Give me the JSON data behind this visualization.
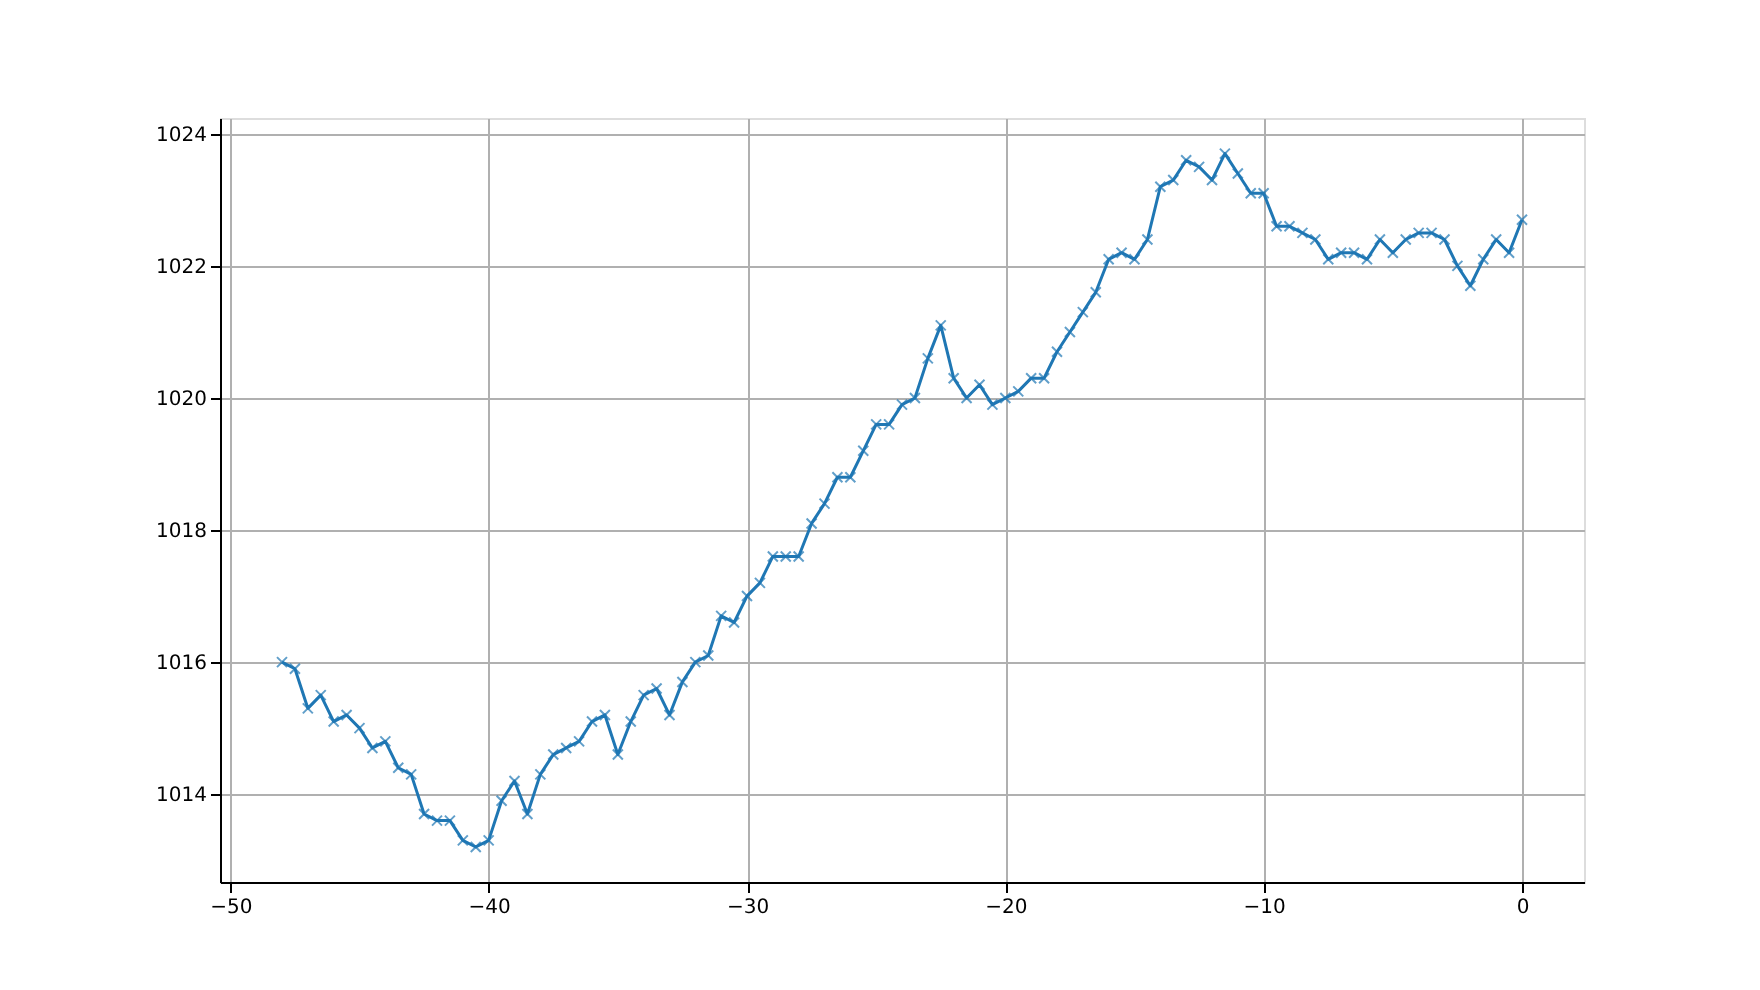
{
  "chart_data": {
    "type": "line",
    "x": [
      -48,
      -47.5,
      -47,
      -46.5,
      -46,
      -45.5,
      -45,
      -44.5,
      -44,
      -43.5,
      -43,
      -42.5,
      -42,
      -41.5,
      -41,
      -40.5,
      -40,
      -39.5,
      -39,
      -38.5,
      -38,
      -37.5,
      -37,
      -36.5,
      -36,
      -35.5,
      -35,
      -34.5,
      -34,
      -33.5,
      -33,
      -32.5,
      -32,
      -31.5,
      -31,
      -30.5,
      -30,
      -29.5,
      -29,
      -28.5,
      -28,
      -27.5,
      -27,
      -26.5,
      -26,
      -25.5,
      -25,
      -24.5,
      -24,
      -23.5,
      -23,
      -22.5,
      -22,
      -21.5,
      -21,
      -20.5,
      -20,
      -19.5,
      -19,
      -18.5,
      -18,
      -17.5,
      -17,
      -16.5,
      -16,
      -15.5,
      -15,
      -14.5,
      -14,
      -13.5,
      -13,
      -12.5,
      -12,
      -11.5,
      -11,
      -10.5,
      -10,
      -9.5,
      -9,
      -8.5,
      -8,
      -7.5,
      -7,
      -6.5,
      -6,
      -5.5,
      -5,
      -4.5,
      -4,
      -3.5,
      -3,
      -2.5,
      -2,
      -1.5,
      -1,
      -0.5,
      0
    ],
    "series": [
      {
        "color": "#1f77b4",
        "values": [
          1016.0,
          1015.9,
          1015.3,
          1015.5,
          1015.1,
          1015.2,
          1015.0,
          1014.7,
          1014.8,
          1014.4,
          1014.3,
          1013.7,
          1013.6,
          1013.6,
          1013.3,
          1013.2,
          1013.3,
          1013.9,
          1014.2,
          1013.7,
          1014.3,
          1014.6,
          1014.7,
          1014.8,
          1015.1,
          1015.2,
          1014.6,
          1015.1,
          1015.5,
          1015.6,
          1015.2,
          1015.7,
          1016.0,
          1016.1,
          1016.7,
          1016.6,
          1017.0,
          1017.2,
          1017.6,
          1017.6,
          1017.6,
          1018.1,
          1018.4,
          1018.8,
          1018.8,
          1019.2,
          1019.6,
          1019.6,
          1019.9,
          1020.0,
          1020.6,
          1021.1,
          1020.3,
          1020.0,
          1020.2,
          1019.9,
          1020.0,
          1020.1,
          1020.3,
          1020.3,
          1020.7,
          1021.0,
          1021.3,
          1021.6,
          1022.1,
          1022.2,
          1022.1,
          1022.4,
          1023.2,
          1023.3,
          1023.6,
          1023.5,
          1023.3,
          1023.7,
          1023.4,
          1023.1,
          1023.1,
          1022.6,
          1022.6,
          1022.5,
          1022.4,
          1022.1,
          1022.2,
          1022.2,
          1022.1,
          1022.4,
          1022.2,
          1022.4,
          1022.5,
          1022.5,
          1022.4,
          1022.0,
          1021.7,
          1022.1,
          1022.4,
          1022.2,
          1022.7
        ]
      }
    ],
    "xlim": [
      -50.4,
      2.4
    ],
    "xticks": [
      -50,
      -40,
      -30,
      -20,
      -10,
      0
    ],
    "ylim": [
      1012.67,
      1024.24
    ],
    "yticks": [
      1014,
      1016,
      1018,
      1020,
      1022,
      1024
    ],
    "grid": true,
    "marker": "cross",
    "line_style": "solid"
  }
}
